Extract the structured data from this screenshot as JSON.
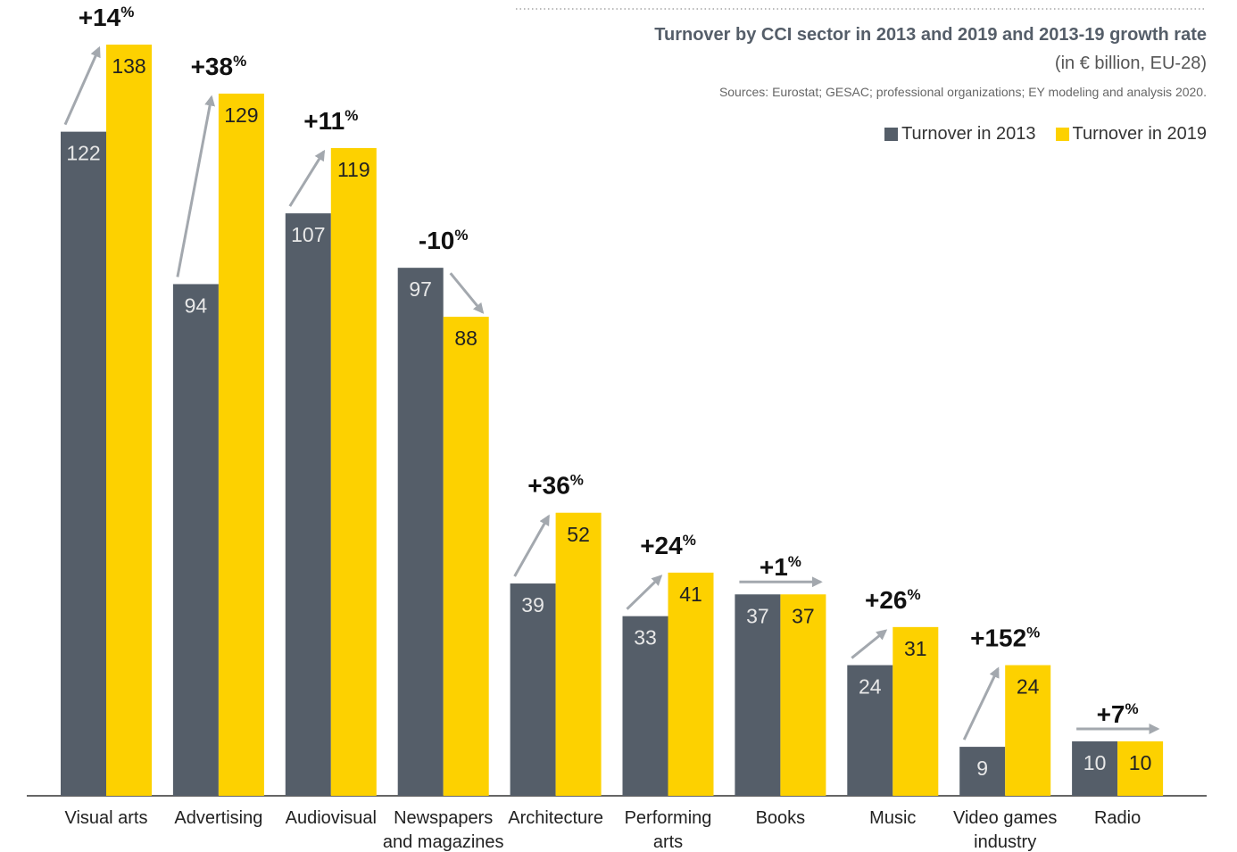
{
  "chart_data": {
    "type": "bar",
    "title": "Turnover by CCI sector in 2013 and 2019 and 2013-19 growth rate",
    "subtitle": "(in € billion, EU-28)",
    "source": "Sources: Eurostat; GESAC; professional organizations; EY modeling and analysis 2020.",
    "categories": [
      "Visual arts",
      "Advertising",
      "Audiovisual",
      "Newspapers\nand magazines",
      "Architecture",
      "Performing\narts",
      "Books",
      "Music",
      "Video games\nindustry",
      "Radio"
    ],
    "series": [
      {
        "name": "Turnover in 2013",
        "color": "#555e69",
        "values": [
          122,
          94,
          107,
          97,
          39,
          33,
          37,
          24,
          9,
          10
        ]
      },
      {
        "name": "Turnover in 2019",
        "color": "#fdd100",
        "values": [
          138,
          129,
          119,
          88,
          52,
          41,
          37,
          31,
          24,
          10
        ]
      }
    ],
    "growth": {
      "values": [
        14,
        38,
        11,
        -10,
        36,
        24,
        1,
        26,
        152,
        7
      ],
      "value_labels": [
        "+14%",
        "+38%",
        "+11%",
        "-10%",
        "+36%",
        "+24%",
        "+1%",
        "+26%",
        "+152%",
        "+7%"
      ]
    },
    "legend": "top-right"
  }
}
